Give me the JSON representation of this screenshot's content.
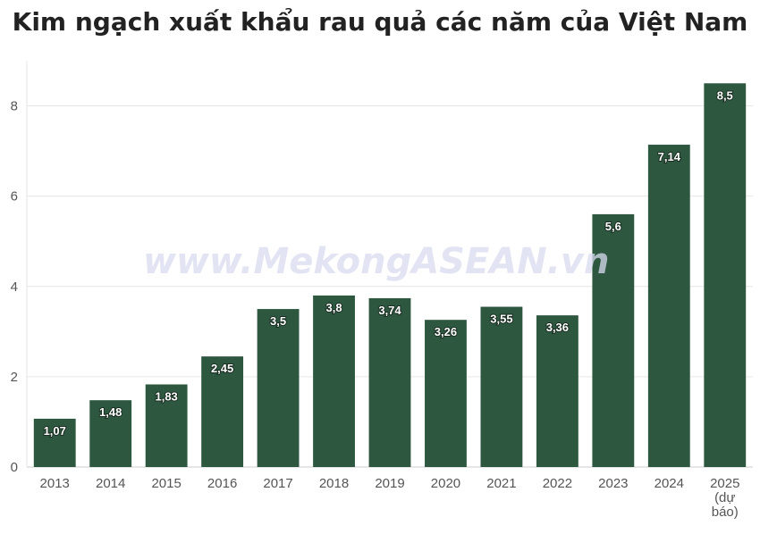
{
  "chart_data": {
    "type": "bar",
    "title": "Kim ngạch xuất khẩu rau quả các năm của Việt Nam",
    "xlabel": "",
    "ylabel": "",
    "categories": [
      "2013",
      "2014",
      "2015",
      "2016",
      "2017",
      "2018",
      "2019",
      "2020",
      "2021",
      "2022",
      "2023",
      "2024",
      "2025 (dự báo)"
    ],
    "values": [
      1.07,
      1.48,
      1.83,
      2.45,
      3.5,
      3.8,
      3.74,
      3.26,
      3.55,
      3.36,
      5.6,
      7.14,
      8.5
    ],
    "value_labels": [
      "1,07",
      "1,48",
      "1,83",
      "2,45",
      "3,5",
      "3,8",
      "3,74",
      "3,26",
      "3,55",
      "3,36",
      "5,6",
      "7,14",
      "8,5"
    ],
    "ylim": [
      0,
      9
    ],
    "yticks": [
      0,
      2,
      4,
      6,
      8
    ],
    "grid": true,
    "bar_color": "#2e5740"
  },
  "watermark": "www.MekongASEAN.vn"
}
